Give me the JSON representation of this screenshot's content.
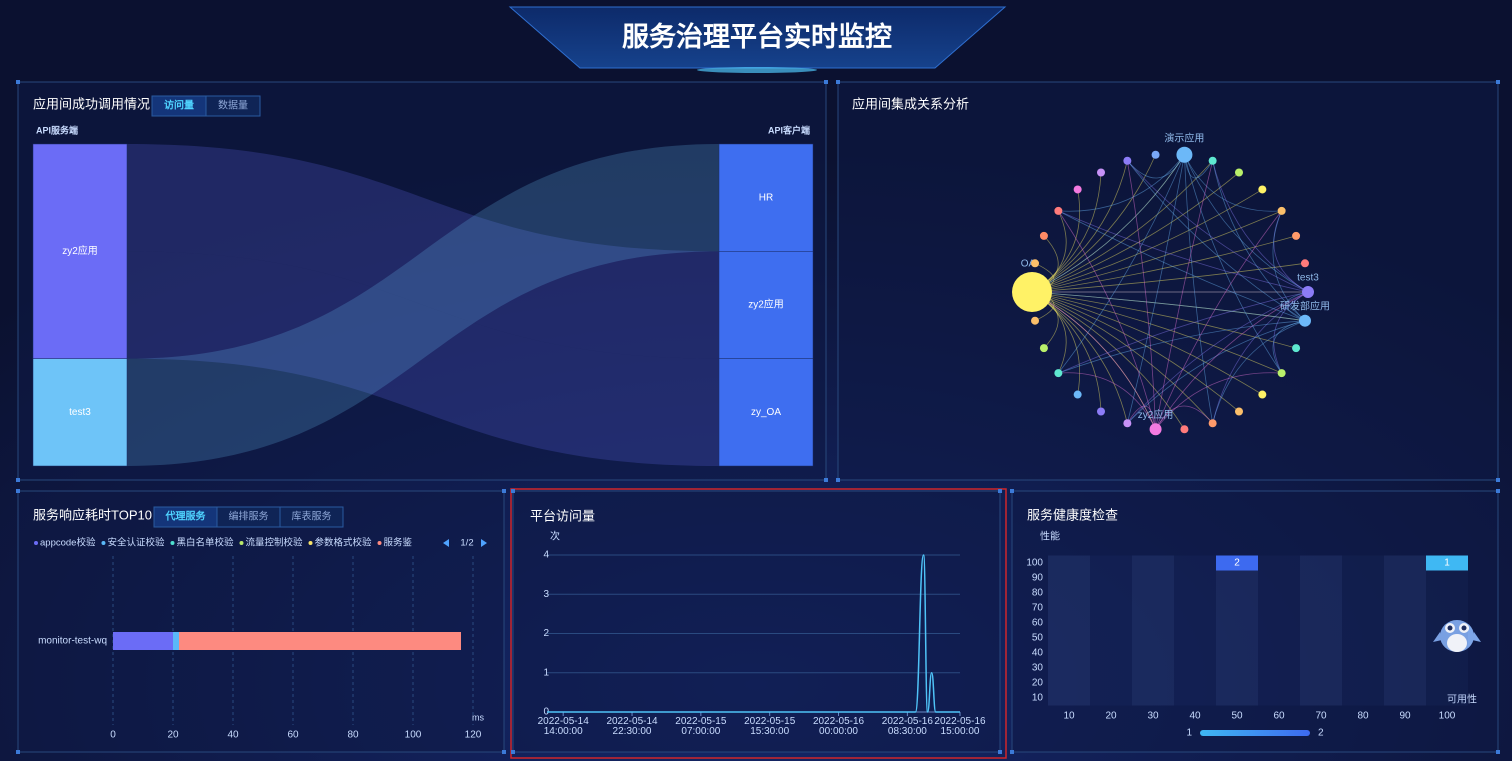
{
  "header": {
    "title": "服务治理平台实时监控"
  },
  "chart_data": [
    {
      "type": "sankey",
      "title": "应用间成功调用情况",
      "tabs": [
        "访问量",
        "数据量"
      ],
      "source_axis": "API服务端",
      "target_axis": "API客户端",
      "sources": [
        "zy2应用",
        "test3"
      ],
      "targets": [
        "HR",
        "zy2应用",
        "zy_OA"
      ],
      "source_colors": [
        "#6b6cf6",
        "#6ec4f8"
      ],
      "target_color": "#3e6ef0",
      "links": [
        {
          "source": "zy2应用",
          "target": "zy2应用",
          "value": 1
        },
        {
          "source": "zy2应用",
          "target": "zy_OA",
          "value": 1
        },
        {
          "source": "test3",
          "target": "HR",
          "value": 1
        }
      ]
    },
    {
      "type": "graph",
      "title": "应用间集成关系分析",
      "nodes": [
        {
          "name": "OA",
          "value": 40,
          "color": "#fff266"
        },
        {
          "name": null,
          "value": 8,
          "color": "#fbbf6a"
        },
        {
          "name": null,
          "value": 8,
          "color": "#ff8a65"
        },
        {
          "name": null,
          "value": 8,
          "color": "#ff7b7b"
        },
        {
          "name": null,
          "value": 8,
          "color": "#f47ae0"
        },
        {
          "name": null,
          "value": 8,
          "color": "#c792f7"
        },
        {
          "name": null,
          "value": 8,
          "color": "#8c7cf7"
        },
        {
          "name": null,
          "value": 8,
          "color": "#7aa8f7"
        },
        {
          "name": "演示应用",
          "value": 16,
          "color": "#6cb8f8"
        },
        {
          "name": null,
          "value": 8,
          "color": "#5ee8d0"
        },
        {
          "name": null,
          "value": 8,
          "color": "#b9f06a"
        },
        {
          "name": null,
          "value": 8,
          "color": "#fff266"
        },
        {
          "name": null,
          "value": 8,
          "color": "#fbbf6a"
        },
        {
          "name": null,
          "value": 8,
          "color": "#ff9a6a"
        },
        {
          "name": null,
          "value": 8,
          "color": "#ff7b7b"
        },
        {
          "name": "test3",
          "value": 12,
          "color": "#8c7cf7"
        },
        {
          "name": "研发部应用",
          "value": 12,
          "color": "#6cb8f8"
        },
        {
          "name": null,
          "value": 8,
          "color": "#5ee8d0"
        },
        {
          "name": null,
          "value": 8,
          "color": "#b9f06a"
        },
        {
          "name": null,
          "value": 8,
          "color": "#fff266"
        },
        {
          "name": null,
          "value": 8,
          "color": "#fbbf6a"
        },
        {
          "name": null,
          "value": 8,
          "color": "#ff9a6a"
        },
        {
          "name": null,
          "value": 8,
          "color": "#ff7b7b"
        },
        {
          "name": "zy2应用",
          "value": 12,
          "color": "#f47ae0"
        },
        {
          "name": null,
          "value": 8,
          "color": "#c792f7"
        },
        {
          "name": null,
          "value": 8,
          "color": "#8c7cf7"
        },
        {
          "name": null,
          "value": 8,
          "color": "#6cb8f8"
        },
        {
          "name": null,
          "value": 8,
          "color": "#5ee8d0"
        },
        {
          "name": null,
          "value": 8,
          "color": "#b9f06a"
        },
        {
          "name": null,
          "value": 8,
          "color": "#fbbf6a"
        }
      ]
    },
    {
      "type": "stacked-bar",
      "title": "服务响应耗时TOP10",
      "tabs": [
        "代理服务",
        "编排服务",
        "库表服务"
      ],
      "pager": "1/2",
      "categories": [
        "monitor-test-wq"
      ],
      "series": [
        {
          "name": "appcode校验",
          "color": "#6b6cf6",
          "values": [
            20
          ]
        },
        {
          "name": "安全认证校验",
          "color": "#5ab8f8",
          "values": [
            2
          ]
        },
        {
          "name": "黑白名单校验",
          "color": "#4fe0d0",
          "values": [
            0
          ]
        },
        {
          "name": "流量控制校验",
          "color": "#b9e86a",
          "values": [
            0
          ]
        },
        {
          "name": "参数格式校验",
          "color": "#f7e26a",
          "values": [
            0
          ]
        },
        {
          "name": "服务鉴",
          "color": "#fd8a80",
          "values": [
            94
          ]
        }
      ],
      "xlim": [
        0,
        120
      ],
      "xticks": [
        0,
        20,
        40,
        60,
        80,
        100,
        120
      ],
      "x_unit": "ms",
      "grid": true
    },
    {
      "type": "line",
      "title": "平台访问量",
      "y_unit": "次",
      "color": "#4fc3f7",
      "x": [
        "2022-05-14 12:00:00",
        "2022-05-16 09:30:00",
        "2022-05-16 10:30:00",
        "2022-05-16 11:00:00",
        "2022-05-16 11:30:00",
        "2022-05-16 12:00:00",
        "2022-05-16 15:00:00"
      ],
      "values": [
        0,
        0,
        4,
        0,
        1,
        0,
        0
      ],
      "xlim": [
        "2022-05-14 12:00:00",
        "2022-05-16 15:00:00"
      ],
      "xticks": [
        "2022-05-14 14:00:00",
        "2022-05-14 22:30:00",
        "2022-05-15 07:00:00",
        "2022-05-15 15:30:00",
        "2022-05-16 00:00:00",
        "2022-05-16 08:30:00",
        "2022-05-16 15:00:00"
      ],
      "ylim": [
        0,
        4
      ],
      "yticks": [
        0,
        1,
        2,
        3,
        4
      ],
      "grid": true
    },
    {
      "type": "heatmap",
      "title": "服务健康度检查",
      "y_label": "性能",
      "x_label": "可用性",
      "xlim": [
        5,
        105
      ],
      "ylim": [
        5,
        105
      ],
      "xticks": [
        10,
        20,
        30,
        40,
        50,
        60,
        70,
        80,
        90,
        100
      ],
      "yticks": [
        10,
        20,
        30,
        40,
        50,
        60,
        70,
        80,
        90,
        100
      ],
      "data": [
        {
          "x": 50,
          "y": 100,
          "value": 2
        },
        {
          "x": 100,
          "y": 100,
          "value": 1
        }
      ],
      "visual_map": {
        "range": [
          1,
          2
        ],
        "colors": [
          "#3fb8f3",
          "#3d6af0"
        ]
      }
    }
  ]
}
